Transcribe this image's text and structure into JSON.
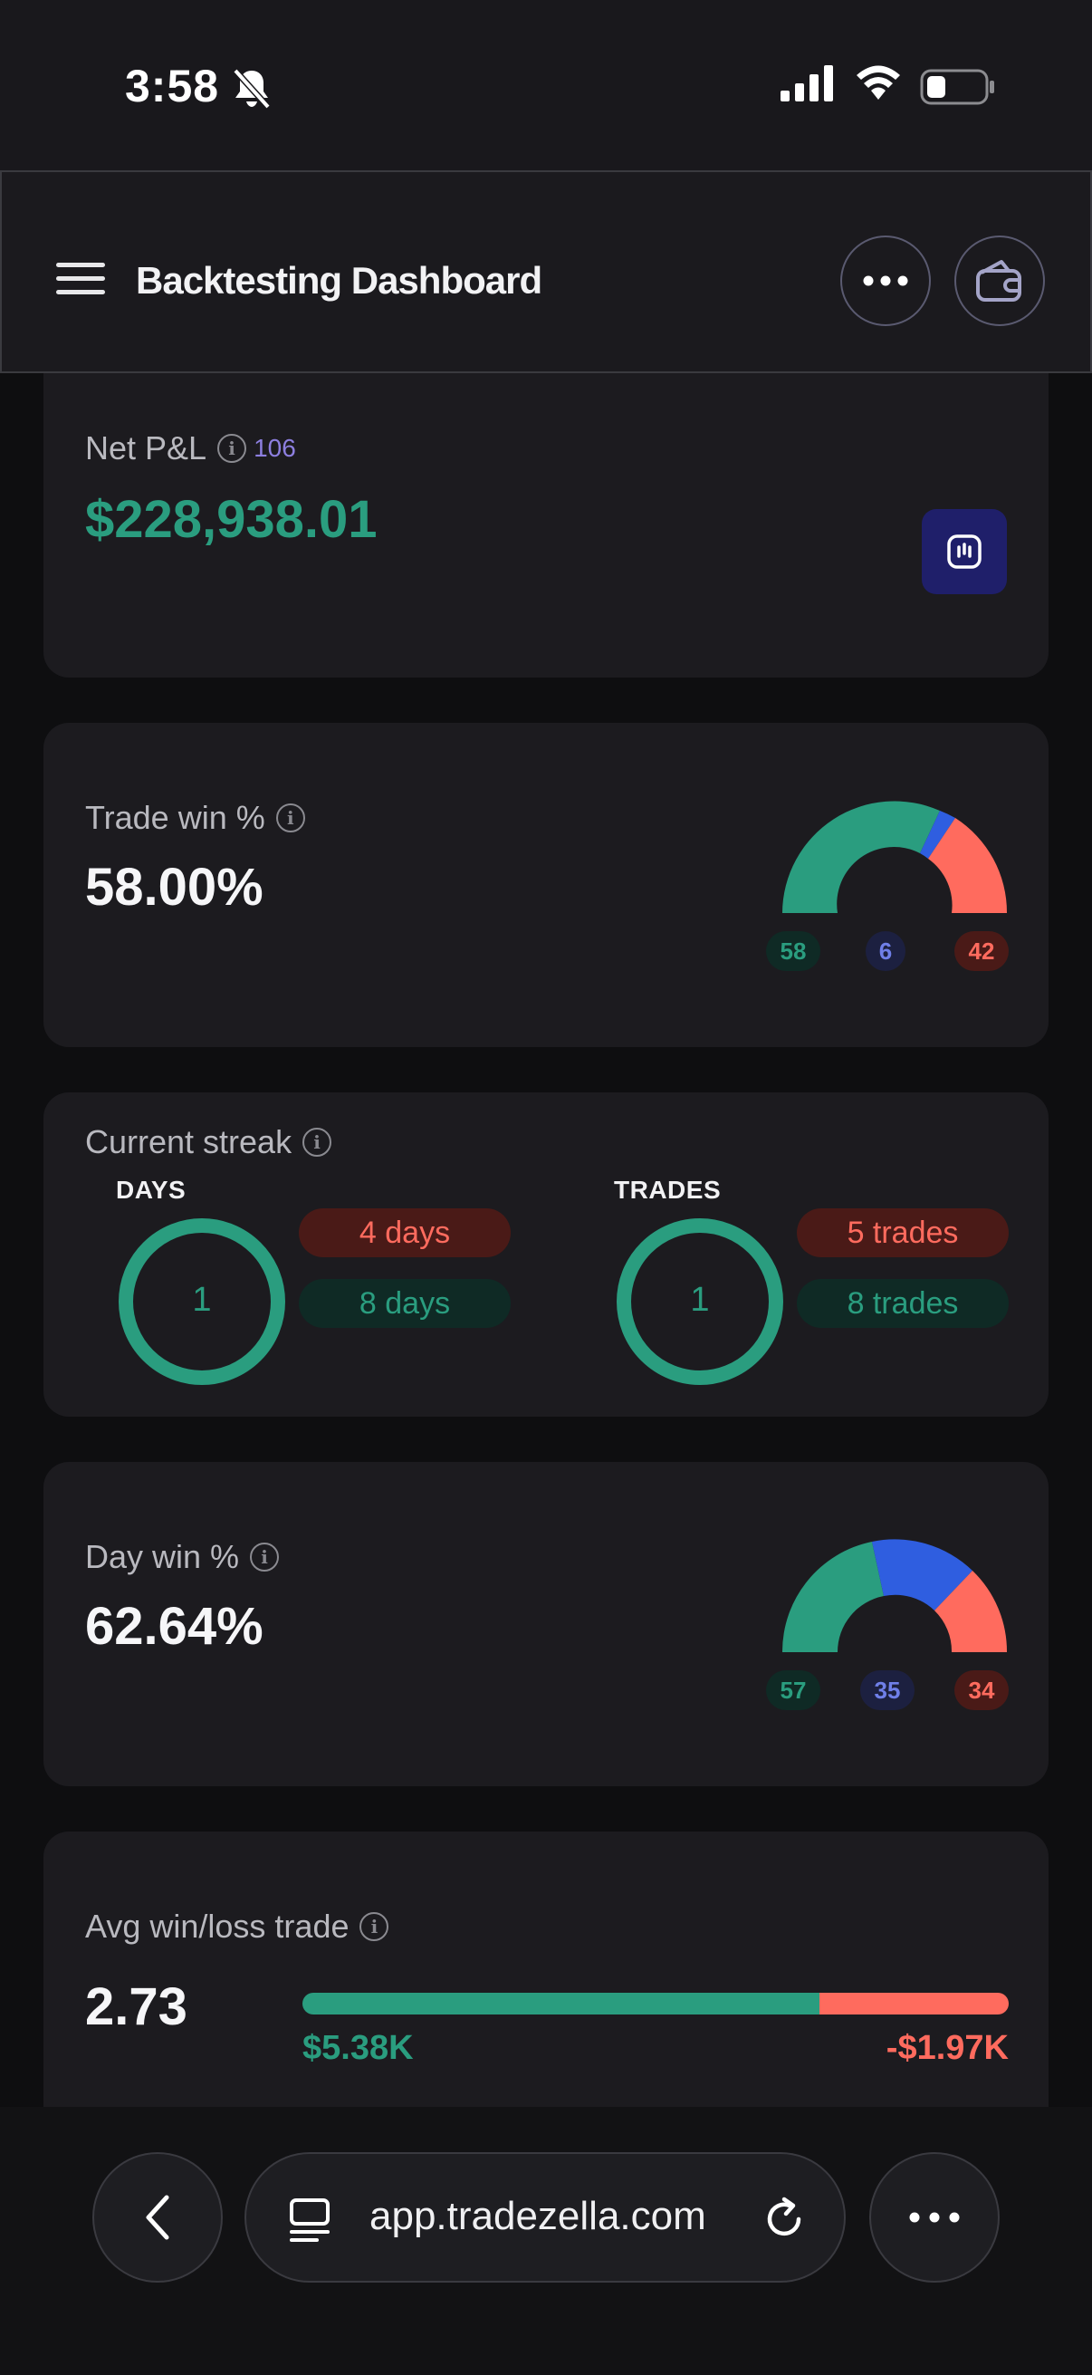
{
  "status_bar": {
    "time": "3:58"
  },
  "header": {
    "title": "Backtesting Dashboard"
  },
  "net_pnl": {
    "label": "Net P&L",
    "count": "106",
    "value": "$228,938.01"
  },
  "trade_win": {
    "label": "Trade win %",
    "value": "58.00%",
    "gauge": {
      "wins": "58",
      "breakeven": "6",
      "losses": "42"
    }
  },
  "current_streak": {
    "label": "Current streak",
    "days": {
      "heading": "DAYS",
      "current": "1",
      "losing": "4 days",
      "winning": "8 days"
    },
    "trades": {
      "heading": "TRADES",
      "current": "1",
      "losing": "5 trades",
      "winning": "8 trades"
    }
  },
  "day_win": {
    "label": "Day win %",
    "value": "62.64%",
    "gauge": {
      "wins": "57",
      "breakeven": "35",
      "losses": "34"
    }
  },
  "avg_win_loss": {
    "label": "Avg win/loss trade",
    "value": "2.73",
    "avg_win": "$5.38K",
    "avg_loss": "-$1.97K"
  },
  "browser": {
    "url": "app.tradezella.com"
  },
  "colors": {
    "green": "#2a9d7f",
    "blue": "#2f5ee0",
    "red": "#ff6b5e",
    "accent": "#2a2a8a"
  },
  "icons": [
    "bell-off-icon",
    "signal-icon",
    "wifi-icon",
    "battery-icon",
    "menu-icon",
    "more-icon",
    "wallet-icon",
    "info-icon",
    "chart-toggle-icon",
    "back-icon",
    "tabs-icon",
    "reload-icon"
  ]
}
